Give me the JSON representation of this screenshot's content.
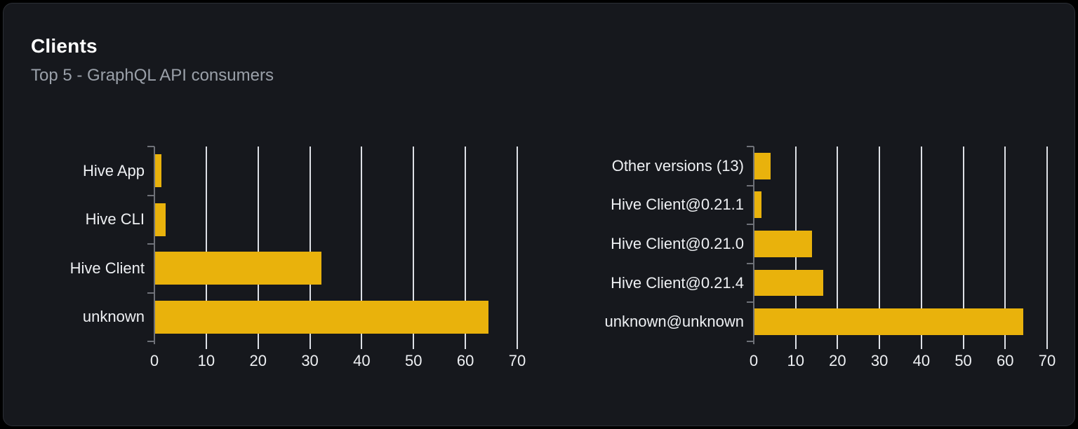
{
  "card": {
    "title": "Clients",
    "subtitle": "Top 5 - GraphQL API consumers"
  },
  "colors": {
    "bar": "#e9b20c",
    "card_background": "#16181d",
    "card_border": "#2b2e35",
    "page_background": "#000000",
    "gridline": "#dde0e6",
    "axis_line": "#6e7178",
    "text_primary": "#ffffff",
    "text_secondary": "#9aa0a9",
    "tick_label": "#eef0f3"
  },
  "chart_data": [
    {
      "type": "bar",
      "orientation": "horizontal",
      "title": "",
      "categories": [
        "Hive App",
        "Hive CLI",
        "Hive Client",
        "unknown"
      ],
      "values": [
        1.4,
        2.1,
        32.2,
        64.4
      ],
      "xlim": [
        0,
        70
      ],
      "xticks": [
        0,
        10,
        20,
        30,
        40,
        50,
        60,
        70
      ],
      "grid": true,
      "legend": false,
      "bar_color": "#e9b20c"
    },
    {
      "type": "bar",
      "orientation": "horizontal",
      "title": "",
      "categories": [
        "Other versions (13)",
        "Hive Client@0.21.1",
        "Hive Client@0.21.0",
        "Hive Client@0.21.4",
        "unknown@unknown"
      ],
      "values": [
        4.0,
        1.9,
        13.9,
        16.5,
        64.3
      ],
      "xlim": [
        0,
        70
      ],
      "xticks": [
        0,
        10,
        20,
        30,
        40,
        50,
        60,
        70
      ],
      "grid": true,
      "legend": false,
      "bar_color": "#e9b20c"
    }
  ]
}
